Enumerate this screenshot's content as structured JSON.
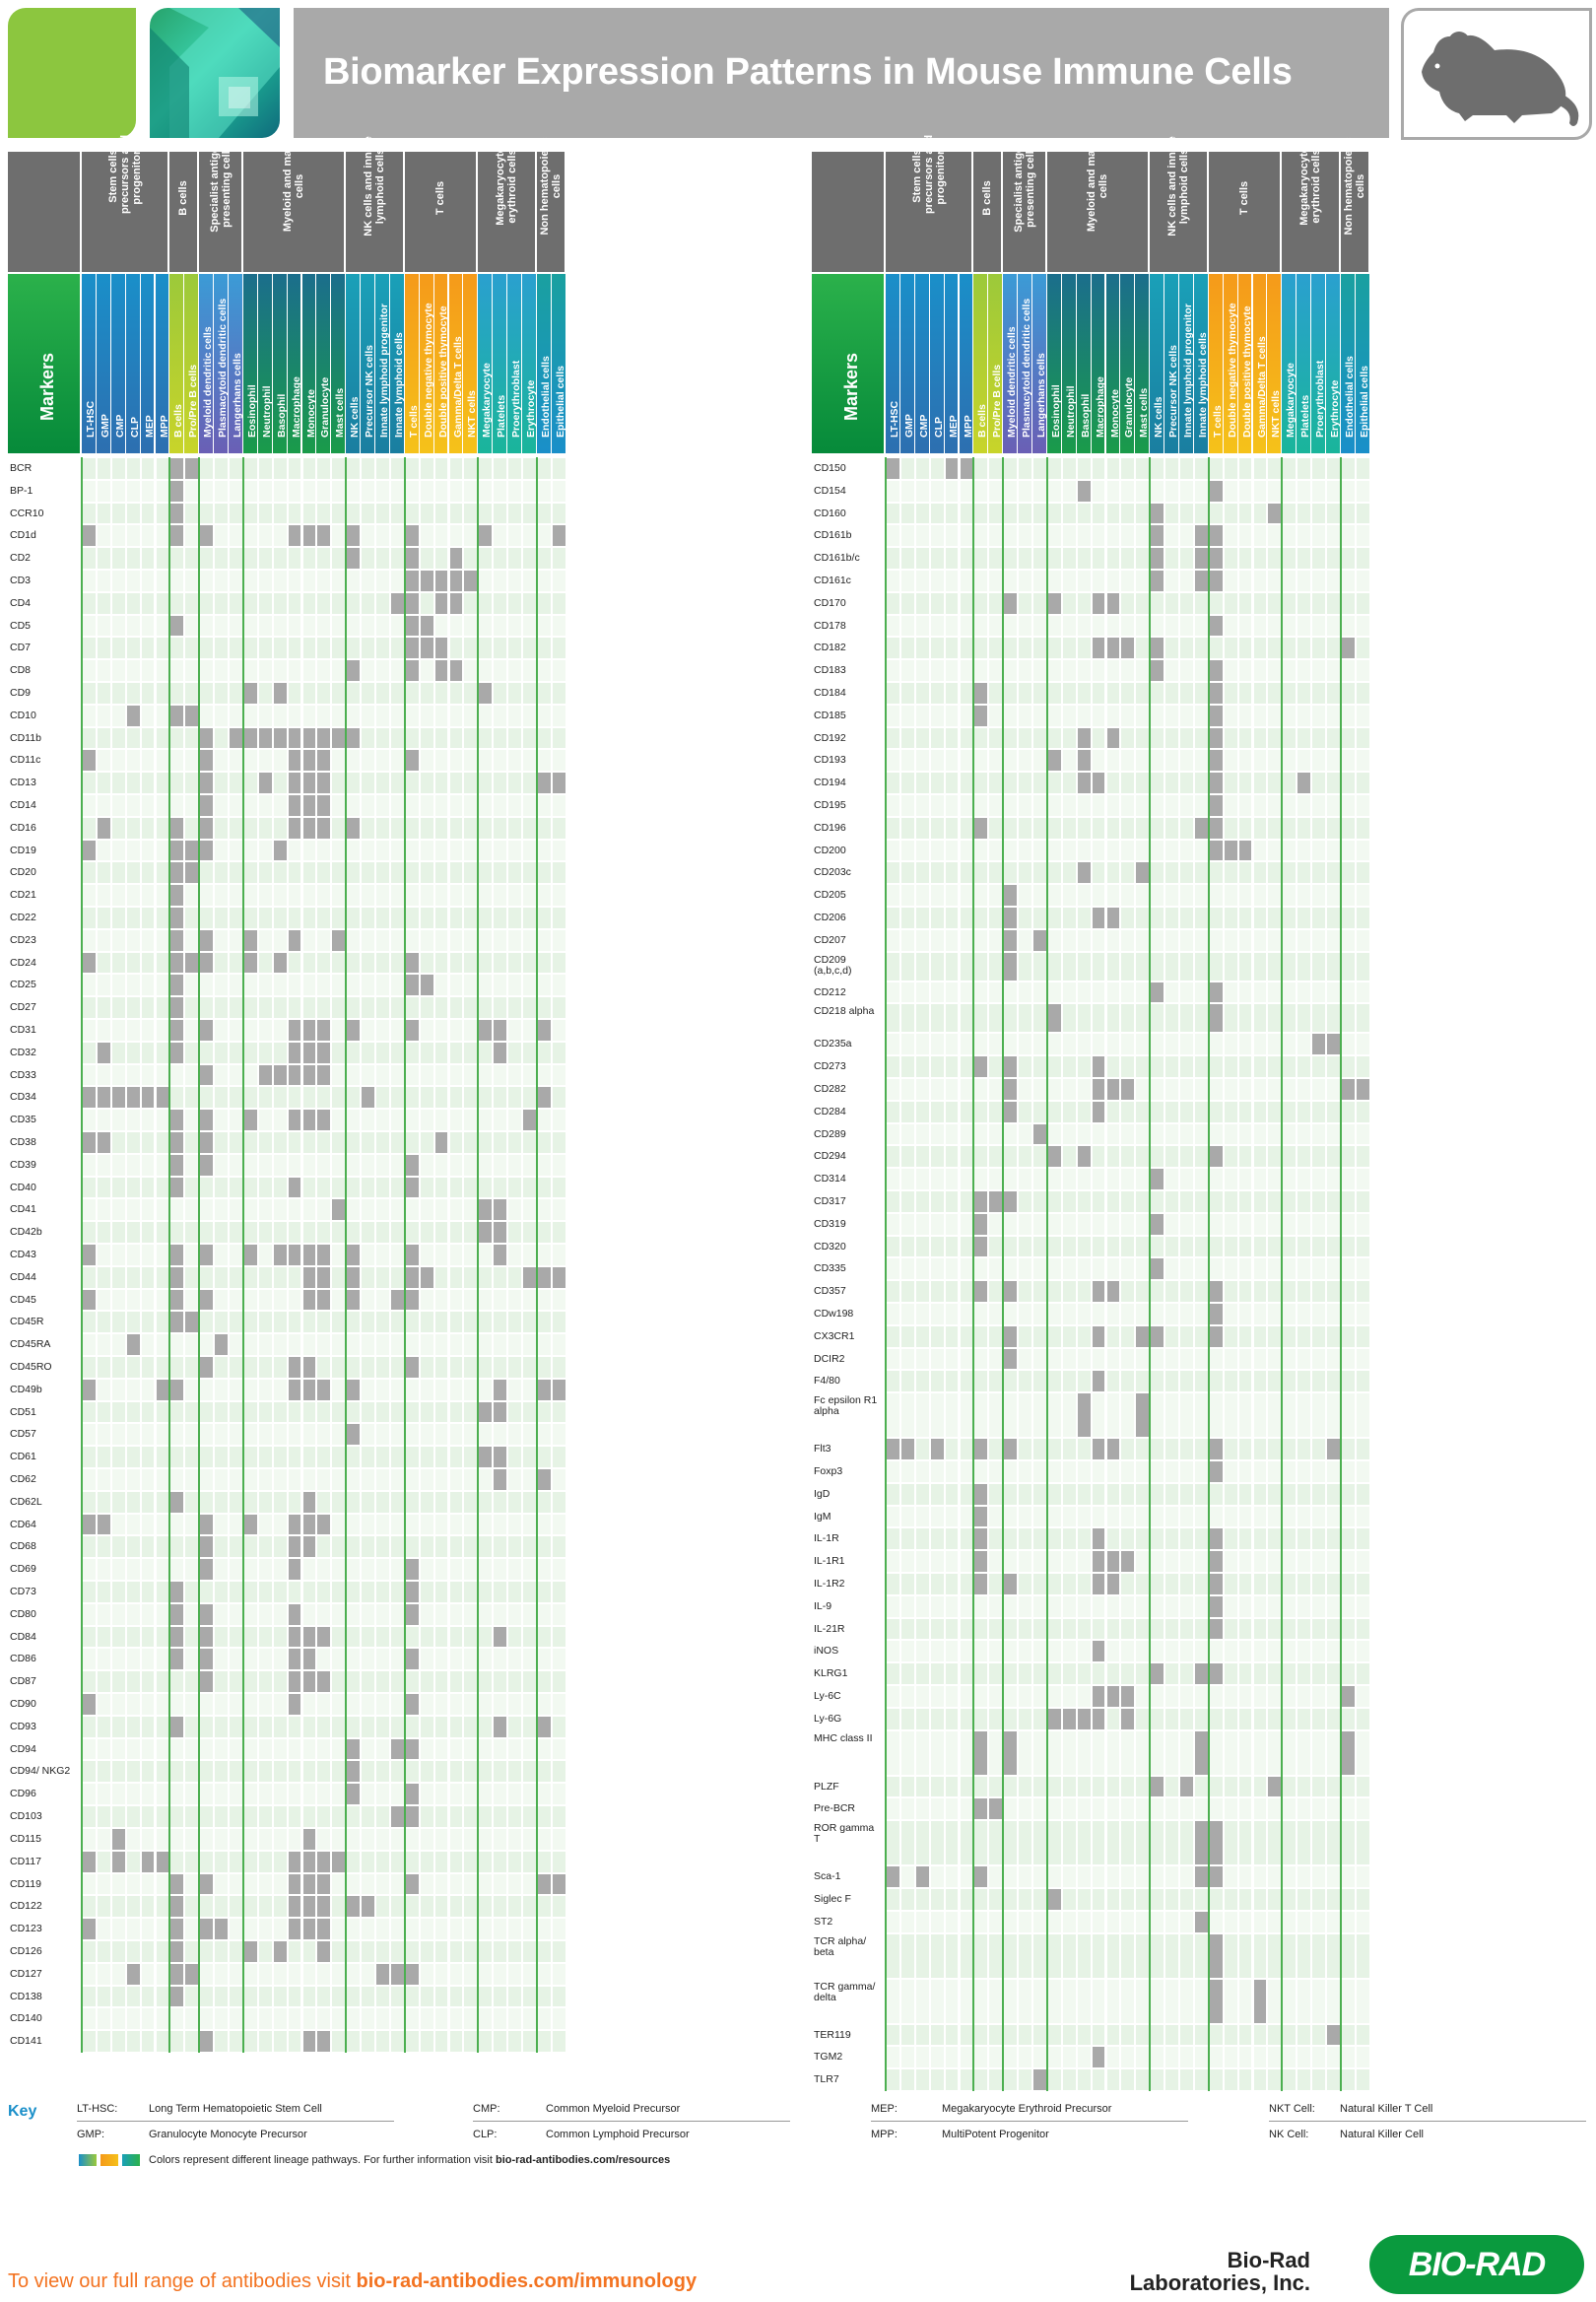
{
  "header": {
    "title": "Biomarker Expression Patterns in Mouse Immune Cells"
  },
  "colors": {
    "stem": "#1a8fc9",
    "b": "#9cc93a",
    "specialist": "#3b9bd6",
    "myeloid": "#1b6e8c",
    "nk": "#1aa0b8",
    "t": "#f59a1a",
    "mega": "#2aa0cf",
    "non": "#1aa0a0",
    "cell_bg_a": "#e6f3e5",
    "cell_bg_b": "#f2f9f1",
    "positive": "#a9a9a9"
  },
  "table": {
    "markers_label": "Markers",
    "groups": [
      {
        "label": "Stem cells, precursors and progenitors",
        "span": 6
      },
      {
        "label": "B cells",
        "span": 2
      },
      {
        "label": "Specialist antigen presenting cells",
        "span": 3
      },
      {
        "label": "Myeloid and mast cells",
        "span": 7
      },
      {
        "label": "NK cells and innate lymphoid cells",
        "span": 4
      },
      {
        "label": "T cells",
        "span": 5
      },
      {
        "label": "Megakaryocyte erythroid cells",
        "span": 4
      },
      {
        "label": "Non hematopoietic cells",
        "span": 2
      }
    ],
    "columns": [
      "LT-HSC",
      "GMP",
      "CMP",
      "CLP",
      "MEP",
      "MPP",
      "B cells",
      "Pro/Pre B cells",
      "Myeloid dendritic cells",
      "Plasmacytoid dendritic cells",
      "Langerhans cells",
      "Eosinophil",
      "Neutrophil",
      "Basophil",
      "Macrophage",
      "Monocyte",
      "Granulocyte",
      "Mast cells",
      "NK cells",
      "Precursor NK cells",
      "Innate lymphoid progenitor",
      "Innate lymphoid cells",
      "T cells",
      "Double negative thymocyte",
      "Double positive thymocyte",
      "Gamma/Delta T cells",
      "NKT cells",
      "Megakaryocyte",
      "Platelets",
      "Proerythroblast",
      "Erythrocyte",
      "Endothelial cells",
      "Epithelial cells"
    ],
    "left_rows": [
      {
        "m": "BCR",
        "p": [
          6,
          7
        ]
      },
      {
        "m": "BP-1",
        "p": [
          6
        ]
      },
      {
        "m": "CCR10",
        "p": [
          6
        ]
      },
      {
        "m": "CD1d",
        "p": [
          0,
          6,
          8,
          14,
          15,
          16,
          18,
          22,
          27,
          32
        ]
      },
      {
        "m": "CD2",
        "p": [
          18,
          22,
          25
        ]
      },
      {
        "m": "CD3",
        "p": [
          22,
          23,
          24,
          25,
          26
        ]
      },
      {
        "m": "CD4",
        "p": [
          21,
          22,
          24,
          25
        ]
      },
      {
        "m": "CD5",
        "p": [
          6,
          22,
          23
        ]
      },
      {
        "m": "CD7",
        "p": [
          22,
          23,
          24
        ]
      },
      {
        "m": "CD8",
        "p": [
          18,
          22,
          24,
          25
        ]
      },
      {
        "m": "CD9",
        "p": [
          11,
          13,
          27
        ]
      },
      {
        "m": "CD10",
        "p": [
          3,
          6,
          7
        ]
      },
      {
        "m": "CD11b",
        "p": [
          8,
          10,
          11,
          12,
          13,
          14,
          15,
          16,
          17,
          18
        ]
      },
      {
        "m": "CD11c",
        "p": [
          0,
          8,
          14,
          15,
          16,
          22
        ]
      },
      {
        "m": "CD13",
        "p": [
          8,
          12,
          14,
          15,
          16,
          31,
          32
        ]
      },
      {
        "m": "CD14",
        "p": [
          8,
          14,
          15,
          16
        ]
      },
      {
        "m": "CD16",
        "p": [
          1,
          6,
          8,
          14,
          15,
          16,
          18
        ]
      },
      {
        "m": "CD19",
        "p": [
          0,
          6,
          7,
          8,
          13
        ]
      },
      {
        "m": "CD20",
        "p": [
          6,
          7
        ]
      },
      {
        "m": "CD21",
        "p": [
          6
        ]
      },
      {
        "m": "CD22",
        "p": [
          6
        ]
      },
      {
        "m": "CD23",
        "p": [
          6,
          8,
          11,
          14,
          17
        ]
      },
      {
        "m": "CD24",
        "p": [
          0,
          6,
          7,
          8,
          11,
          13,
          22
        ]
      },
      {
        "m": "CD25",
        "p": [
          6,
          22,
          23
        ]
      },
      {
        "m": "CD27",
        "p": [
          6
        ]
      },
      {
        "m": "CD31",
        "p": [
          6,
          8,
          14,
          15,
          16,
          18,
          22,
          27,
          28,
          31
        ]
      },
      {
        "m": "CD32",
        "p": [
          1,
          6,
          14,
          15,
          16,
          28
        ]
      },
      {
        "m": "CD33",
        "p": [
          8,
          12,
          13,
          14,
          15,
          16
        ]
      },
      {
        "m": "CD34",
        "p": [
          0,
          1,
          2,
          3,
          4,
          5,
          19,
          31
        ]
      },
      {
        "m": "CD35",
        "p": [
          6,
          8,
          11,
          14,
          15,
          16,
          30
        ]
      },
      {
        "m": "CD38",
        "p": [
          0,
          1,
          6,
          8,
          24
        ]
      },
      {
        "m": "CD39",
        "p": [
          6,
          8,
          22
        ]
      },
      {
        "m": "CD40",
        "p": [
          6,
          14,
          22
        ]
      },
      {
        "m": "CD41",
        "p": [
          17,
          27,
          28
        ]
      },
      {
        "m": "CD42b",
        "p": [
          27,
          28
        ]
      },
      {
        "m": "CD43",
        "p": [
          0,
          6,
          8,
          11,
          13,
          14,
          15,
          16,
          18,
          22,
          28
        ]
      },
      {
        "m": "CD44",
        "p": [
          6,
          15,
          16,
          18,
          22,
          23,
          30,
          31,
          32
        ]
      },
      {
        "m": "CD45",
        "p": [
          0,
          6,
          8,
          15,
          16,
          18,
          21,
          22
        ]
      },
      {
        "m": "CD45R",
        "p": [
          6,
          7
        ]
      },
      {
        "m": "CD45RA",
        "p": [
          3,
          9
        ]
      },
      {
        "m": "CD45RO",
        "p": [
          8,
          14,
          15,
          22
        ]
      },
      {
        "m": "CD49b",
        "p": [
          0,
          5,
          6,
          14,
          15,
          16,
          18,
          28,
          31,
          32
        ]
      },
      {
        "m": "CD51",
        "p": [
          27,
          28
        ]
      },
      {
        "m": "CD57",
        "p": [
          18
        ]
      },
      {
        "m": "CD61",
        "p": [
          27,
          28
        ]
      },
      {
        "m": "CD62",
        "p": [
          28,
          31
        ]
      },
      {
        "m": "CD62L",
        "p": [
          6,
          15
        ]
      },
      {
        "m": "CD64",
        "p": [
          0,
          1,
          8,
          11,
          14,
          15,
          16
        ]
      },
      {
        "m": "CD68",
        "p": [
          8,
          14,
          15
        ]
      },
      {
        "m": "CD69",
        "p": [
          8,
          14,
          22
        ]
      },
      {
        "m": "CD73",
        "p": [
          6,
          22
        ]
      },
      {
        "m": "CD80",
        "p": [
          6,
          8,
          14,
          22
        ]
      },
      {
        "m": "CD84",
        "p": [
          6,
          8,
          14,
          15,
          16,
          28
        ]
      },
      {
        "m": "CD86",
        "p": [
          6,
          8,
          14,
          15,
          22
        ]
      },
      {
        "m": "CD87",
        "p": [
          8,
          14,
          15,
          16
        ]
      },
      {
        "m": "CD90",
        "p": [
          0,
          14,
          22
        ]
      },
      {
        "m": "CD93",
        "p": [
          6,
          28,
          31
        ]
      },
      {
        "m": "CD94",
        "p": [
          18,
          21,
          22
        ]
      },
      {
        "m": "CD94/ NKG2",
        "p": [
          18
        ]
      },
      {
        "m": "CD96",
        "p": [
          18,
          22
        ]
      },
      {
        "m": "CD103",
        "p": [
          21,
          22
        ]
      },
      {
        "m": "CD115",
        "p": [
          2,
          15
        ]
      },
      {
        "m": "CD117",
        "p": [
          0,
          2,
          4,
          5,
          14,
          15,
          16,
          17
        ]
      },
      {
        "m": "CD119",
        "p": [
          6,
          8,
          14,
          15,
          16,
          22,
          31,
          32
        ]
      },
      {
        "m": "CD122",
        "p": [
          6,
          14,
          15,
          16,
          18,
          19
        ]
      },
      {
        "m": "CD123",
        "p": [
          0,
          6,
          8,
          9,
          14,
          15,
          16
        ]
      },
      {
        "m": "CD126",
        "p": [
          6,
          11,
          13,
          16
        ]
      },
      {
        "m": "CD127",
        "p": [
          3,
          6,
          7,
          20,
          21,
          22
        ]
      },
      {
        "m": "CD138",
        "p": [
          6
        ]
      },
      {
        "m": "CD140",
        "p": []
      },
      {
        "m": "CD141",
        "p": [
          8,
          15,
          16
        ]
      }
    ],
    "right_rows": [
      {
        "m": "CD150",
        "p": [
          0,
          4,
          5
        ]
      },
      {
        "m": "CD154",
        "p": [
          13,
          22
        ]
      },
      {
        "m": "CD160",
        "p": [
          18,
          26
        ]
      },
      {
        "m": "CD161b",
        "p": [
          18,
          21,
          22
        ]
      },
      {
        "m": "CD161b/c",
        "p": [
          18,
          21,
          22
        ]
      },
      {
        "m": "CD161c",
        "p": [
          18,
          21,
          22
        ]
      },
      {
        "m": "CD170",
        "p": [
          8,
          11,
          14,
          15
        ]
      },
      {
        "m": "CD178",
        "p": [
          22
        ]
      },
      {
        "m": "CD182",
        "p": [
          14,
          15,
          16,
          18,
          31
        ]
      },
      {
        "m": "CD183",
        "p": [
          18,
          22
        ]
      },
      {
        "m": "CD184",
        "p": [
          6,
          22
        ]
      },
      {
        "m": "CD185",
        "p": [
          6,
          22
        ]
      },
      {
        "m": "CD192",
        "p": [
          13,
          15,
          22
        ]
      },
      {
        "m": "CD193",
        "p": [
          11,
          13,
          22
        ]
      },
      {
        "m": "CD194",
        "p": [
          13,
          14,
          22,
          28
        ]
      },
      {
        "m": "CD195",
        "p": [
          22
        ]
      },
      {
        "m": "CD196",
        "p": [
          6,
          21,
          22
        ]
      },
      {
        "m": "CD200",
        "p": [
          22,
          23,
          24
        ]
      },
      {
        "m": "CD203c",
        "p": [
          13,
          17
        ]
      },
      {
        "m": "CD205",
        "p": [
          8
        ]
      },
      {
        "m": "CD206",
        "p": [
          8,
          14,
          15
        ]
      },
      {
        "m": "CD207",
        "p": [
          8,
          10
        ]
      },
      {
        "m": "CD209 (a,b,c,d)",
        "p": [
          8
        ]
      },
      {
        "m": "CD212",
        "p": [
          18,
          22
        ]
      },
      {
        "m": "CD218 alpha",
        "p": [
          11,
          22
        ]
      },
      {
        "m": "CD235a",
        "p": [
          29,
          30
        ]
      },
      {
        "m": "CD273",
        "p": [
          6,
          8,
          14
        ]
      },
      {
        "m": "CD282",
        "p": [
          8,
          14,
          15,
          16,
          31,
          32
        ]
      },
      {
        "m": "CD284",
        "p": [
          8,
          14
        ]
      },
      {
        "m": "CD289",
        "p": [
          10
        ]
      },
      {
        "m": "CD294",
        "p": [
          11,
          13,
          22
        ]
      },
      {
        "m": "CD314",
        "p": [
          18
        ]
      },
      {
        "m": "CD317",
        "p": [
          6,
          7,
          8
        ]
      },
      {
        "m": "CD319",
        "p": [
          6,
          18
        ]
      },
      {
        "m": "CD320",
        "p": [
          6
        ]
      },
      {
        "m": "CD335",
        "p": [
          18
        ]
      },
      {
        "m": "CD357",
        "p": [
          6,
          8,
          14,
          15,
          22
        ]
      },
      {
        "m": "CDw198",
        "p": [
          22
        ]
      },
      {
        "m": "CX3CR1",
        "p": [
          8,
          14,
          17,
          18,
          22
        ]
      },
      {
        "m": "DCIR2",
        "p": [
          8
        ]
      },
      {
        "m": "F4/80",
        "p": [
          14
        ]
      },
      {
        "m": "Fc epsilon R1 alpha",
        "p": [
          13,
          17
        ]
      },
      {
        "m": "Flt3",
        "p": [
          0,
          1,
          3,
          6,
          8,
          14,
          15,
          22,
          30
        ]
      },
      {
        "m": "Foxp3",
        "p": [
          22
        ]
      },
      {
        "m": "IgD",
        "p": [
          6
        ]
      },
      {
        "m": "IgM",
        "p": [
          6
        ]
      },
      {
        "m": "IL-1R",
        "p": [
          6,
          14,
          22
        ]
      },
      {
        "m": "IL-1R1",
        "p": [
          6,
          14,
          15,
          16,
          22
        ]
      },
      {
        "m": "IL-1R2",
        "p": [
          6,
          8,
          14,
          15,
          22
        ]
      },
      {
        "m": "IL-9",
        "p": [
          22
        ]
      },
      {
        "m": "IL-21R",
        "p": [
          22
        ]
      },
      {
        "m": "iNOS",
        "p": [
          14
        ]
      },
      {
        "m": "KLRG1",
        "p": [
          18,
          21,
          22
        ]
      },
      {
        "m": "Ly-6C",
        "p": [
          14,
          15,
          16,
          31
        ]
      },
      {
        "m": "Ly-6G",
        "p": [
          11,
          12,
          13,
          14,
          16
        ]
      },
      {
        "m": "MHC class II",
        "p": [
          6,
          8,
          21,
          31
        ]
      },
      {
        "m": "PLZF",
        "p": [
          18,
          20,
          26
        ]
      },
      {
        "m": "Pre-BCR",
        "p": [
          6,
          7
        ]
      },
      {
        "m": "ROR gamma T",
        "p": [
          21,
          22
        ]
      },
      {
        "m": "Sca-1",
        "p": [
          0,
          2,
          6,
          21,
          22
        ]
      },
      {
        "m": "Siglec F",
        "p": [
          11
        ]
      },
      {
        "m": "ST2",
        "p": [
          21
        ]
      },
      {
        "m": "TCR alpha/ beta",
        "p": [
          22
        ]
      },
      {
        "m": "TCR gamma/ delta",
        "p": [
          22,
          25
        ]
      },
      {
        "m": "TER119",
        "p": [
          30
        ]
      },
      {
        "m": "TGM2",
        "p": [
          14
        ]
      },
      {
        "m": "TLR7",
        "p": [
          10
        ]
      }
    ]
  },
  "key": {
    "title": "Key",
    "items": [
      {
        "abbr": "LT-HSC:",
        "desc": "Long Term Hematopoietic Stem Cell"
      },
      {
        "abbr": "GMP:",
        "desc": "Granulocyte Monocyte Precursor"
      },
      {
        "abbr": "CMP:",
        "desc": "Common Myeloid Precursor"
      },
      {
        "abbr": "CLP:",
        "desc": "Common Lymphoid Precursor"
      },
      {
        "abbr": "MEP:",
        "desc": "Megakaryocyte Erythroid Precursor"
      },
      {
        "abbr": "MPP:",
        "desc": "MultiPotent Progenitor"
      },
      {
        "abbr": "NKT Cell:",
        "desc": "Natural Killer T Cell"
      },
      {
        "abbr": "NK Cell:",
        "desc": "Natural Killer Cell"
      }
    ],
    "colors_note": "Colors represent different lineage pathways. For further information visit ",
    "colors_link": "bio-rad-antibodies.com/resources"
  },
  "footer": {
    "cta_prefix": "To view our full range of antibodies visit ",
    "cta_link": "bio-rad-antibodies.com/immunology",
    "company": "Bio-Rad Laboratories, Inc.",
    "brand": "BIO-RAD"
  }
}
